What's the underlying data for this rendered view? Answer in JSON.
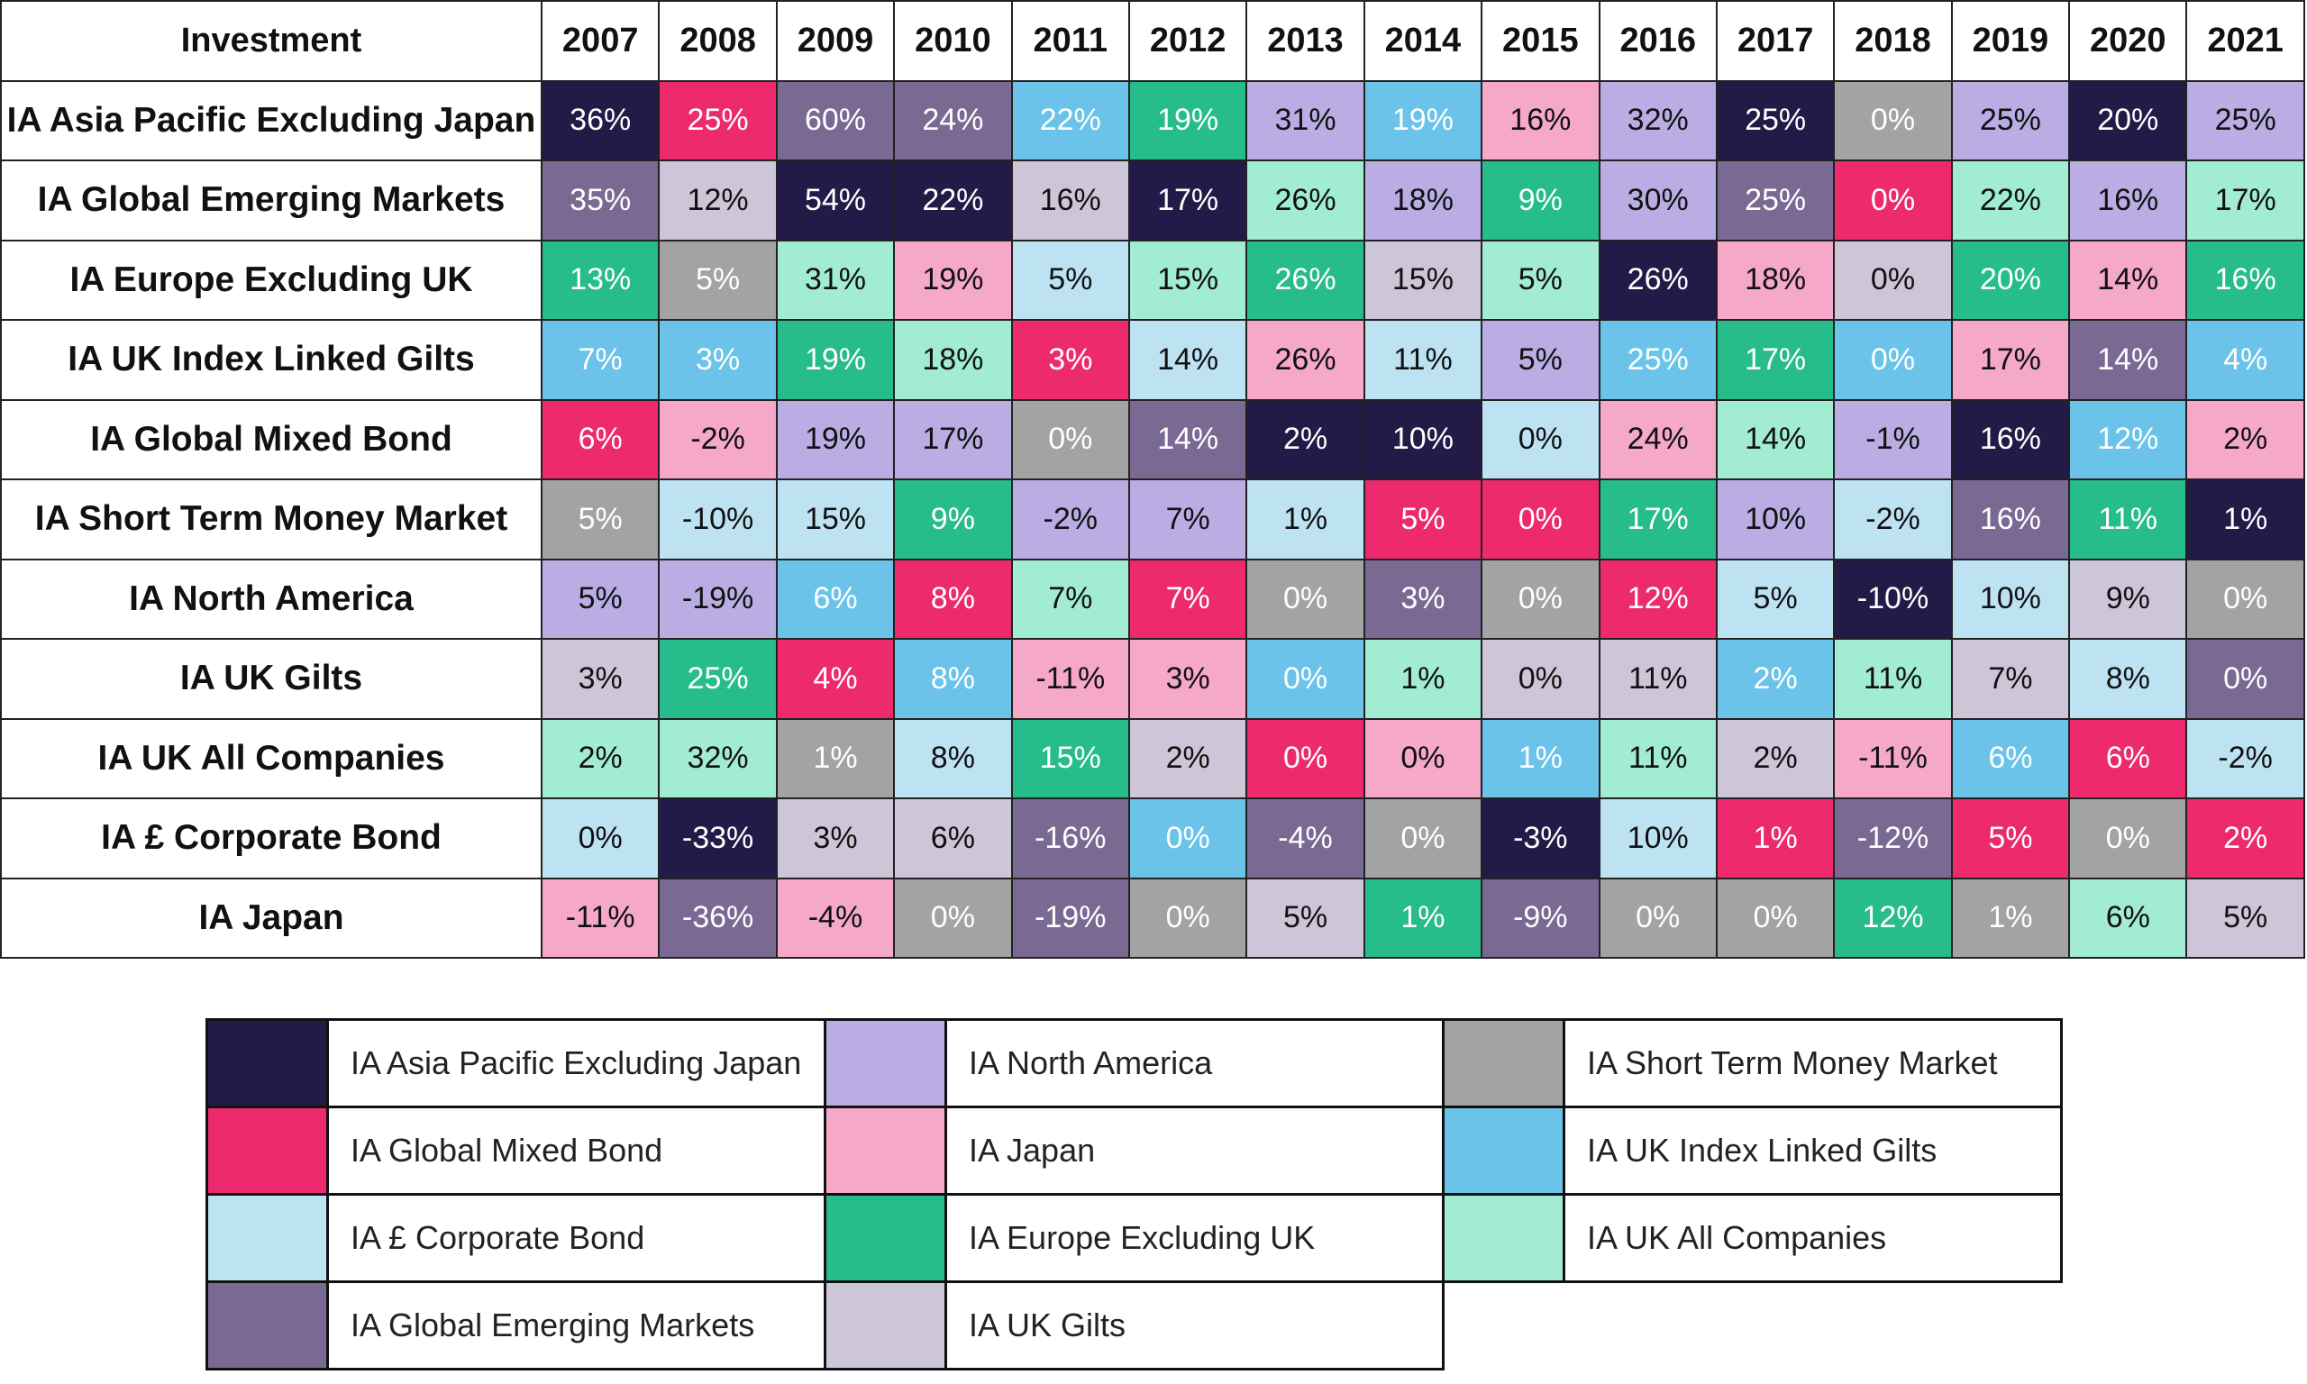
{
  "chart_data": {
    "type": "table",
    "header": "Investment",
    "years": [
      "2007",
      "2008",
      "2009",
      "2010",
      "2011",
      "2012",
      "2013",
      "2014",
      "2015",
      "2016",
      "2017",
      "2018",
      "2019",
      "2020",
      "2021"
    ],
    "rows": [
      {
        "name": "IA Asia Pacific Excluding Japan",
        "values": [
          "36%",
          "25%",
          "60%",
          "24%",
          "22%",
          "19%",
          "31%",
          "19%",
          "16%",
          "32%",
          "25%",
          "0%",
          "25%",
          "20%",
          "25%"
        ],
        "colors": [
          "AP",
          "GMB",
          "GEM",
          "GEM",
          "UKILG",
          "EU",
          "NA",
          "UKILG",
          "JP",
          "NA",
          "AP",
          "STMM",
          "NA",
          "AP",
          "NA"
        ]
      },
      {
        "name": "IA Global Emerging Markets",
        "values": [
          "35%",
          "12%",
          "54%",
          "22%",
          "16%",
          "17%",
          "26%",
          "18%",
          "9%",
          "30%",
          "25%",
          "0%",
          "22%",
          "16%",
          "17%"
        ],
        "colors": [
          "GEM",
          "UKG",
          "AP",
          "AP",
          "UKG",
          "AP",
          "UKAC",
          "NA",
          "EU",
          "NA",
          "GEM",
          "GMB",
          "UKAC",
          "NA",
          "UKAC"
        ]
      },
      {
        "name": "IA Europe Excluding UK",
        "values": [
          "13%",
          "5%",
          "31%",
          "19%",
          "5%",
          "15%",
          "26%",
          "15%",
          "5%",
          "26%",
          "18%",
          "0%",
          "20%",
          "14%",
          "16%"
        ],
        "colors": [
          "EU",
          "STMM",
          "UKAC",
          "JP",
          "CB",
          "UKAC",
          "EU",
          "UKG",
          "UKAC",
          "AP",
          "JP",
          "UKG",
          "EU",
          "JP",
          "EU"
        ]
      },
      {
        "name": "IA UK Index Linked Gilts",
        "values": [
          "7%",
          "3%",
          "19%",
          "18%",
          "3%",
          "14%",
          "26%",
          "11%",
          "5%",
          "25%",
          "17%",
          "0%",
          "17%",
          "14%",
          "4%"
        ],
        "colors": [
          "UKILG",
          "UKILG",
          "EU",
          "UKAC",
          "GMB",
          "CB",
          "JP",
          "CB",
          "NA",
          "UKILG",
          "EU",
          "UKILG",
          "JP",
          "GEM",
          "UKILG"
        ]
      },
      {
        "name": "IA Global Mixed Bond",
        "values": [
          "6%",
          "-2%",
          "19%",
          "17%",
          "0%",
          "14%",
          "2%",
          "10%",
          "0%",
          "24%",
          "14%",
          "-1%",
          "16%",
          "12%",
          "2%"
        ],
        "colors": [
          "GMB",
          "JP",
          "NA",
          "NA",
          "STMM",
          "GEM",
          "AP",
          "AP",
          "CB",
          "JP",
          "UKAC",
          "NA",
          "AP",
          "UKILG",
          "JP"
        ]
      },
      {
        "name": "IA Short Term Money Market",
        "values": [
          "5%",
          "-10%",
          "15%",
          "9%",
          "-2%",
          "7%",
          "1%",
          "5%",
          "0%",
          "17%",
          "10%",
          "-2%",
          "16%",
          "11%",
          "1%"
        ],
        "colors": [
          "STMM",
          "CB",
          "CB",
          "EU",
          "NA",
          "NA",
          "CB",
          "GMB",
          "GMB",
          "EU",
          "NA",
          "CB",
          "GEM",
          "EU",
          "AP"
        ]
      },
      {
        "name": "IA North America",
        "values": [
          "5%",
          "-19%",
          "6%",
          "8%",
          "7%",
          "7%",
          "0%",
          "3%",
          "0%",
          "12%",
          "5%",
          "-10%",
          "10%",
          "9%",
          "0%"
        ],
        "colors": [
          "NA",
          "NA",
          "UKILG",
          "GMB",
          "UKAC",
          "GMB",
          "STMM",
          "GEM",
          "STMM",
          "GMB",
          "CB",
          "AP",
          "CB",
          "UKG",
          "STMM"
        ]
      },
      {
        "name": "IA UK Gilts",
        "values": [
          "3%",
          "25%",
          "4%",
          "8%",
          "-11%",
          "3%",
          "0%",
          "1%",
          "0%",
          "11%",
          "2%",
          "11%",
          "7%",
          "8%",
          "0%"
        ],
        "colors": [
          "UKG",
          "EU",
          "GMB",
          "UKILG",
          "JP",
          "JP",
          "UKILG",
          "UKAC",
          "UKG",
          "UKG",
          "UKILG",
          "UKAC",
          "UKG",
          "CB",
          "GEM"
        ]
      },
      {
        "name": "IA UK All Companies",
        "values": [
          "2%",
          "32%",
          "1%",
          "8%",
          "15%",
          "2%",
          "0%",
          "0%",
          "1%",
          "11%",
          "2%",
          "-11%",
          "6%",
          "6%",
          "-2%"
        ],
        "colors": [
          "UKAC",
          "UKAC",
          "STMM",
          "CB",
          "EU",
          "UKG",
          "GMB",
          "JP",
          "UKILG",
          "UKAC",
          "UKG",
          "JP",
          "UKILG",
          "GMB",
          "CB"
        ]
      },
      {
        "name": "IA £ Corporate Bond",
        "values": [
          "0%",
          "-33%",
          "3%",
          "6%",
          "-16%",
          "0%",
          "-4%",
          "0%",
          "-3%",
          "10%",
          "1%",
          "-12%",
          "5%",
          "0%",
          "2%"
        ],
        "colors": [
          "CB",
          "AP",
          "UKG",
          "UKG",
          "GEM",
          "UKILG",
          "GEM",
          "STMM",
          "AP",
          "CB",
          "GMB",
          "GEM",
          "GMB",
          "STMM",
          "GMB"
        ]
      },
      {
        "name": "IA Japan",
        "values": [
          "-11%",
          "-36%",
          "-4%",
          "0%",
          "-19%",
          "0%",
          "5%",
          "1%",
          "-9%",
          "0%",
          "0%",
          "12%",
          "1%",
          "6%",
          "5%"
        ],
        "colors": [
          "JP",
          "GEM",
          "JP",
          "STMM",
          "GEM",
          "STMM",
          "UKG",
          "EU",
          "GEM",
          "STMM",
          "STMM",
          "EU",
          "STMM",
          "UKAC",
          "UKG"
        ]
      }
    ],
    "legend": [
      {
        "key": "AP",
        "label": "IA Asia Pacific Excluding Japan",
        "color": "#241a47"
      },
      {
        "key": "GMB",
        "label": "IA Global Mixed Bond",
        "color": "#ec2a6d"
      },
      {
        "key": "CB",
        "label": "IA £ Corporate Bond",
        "color": "#bde3f3"
      },
      {
        "key": "GEM",
        "label": "IA Global Emerging Markets",
        "color": "#7a6993"
      },
      {
        "key": "NA",
        "label": "IA North America",
        "color": "#b9ade4"
      },
      {
        "key": "JP",
        "label": "IA Japan",
        "color": "#f6a8c8"
      },
      {
        "key": "EU",
        "label": "IA Europe Excluding UK",
        "color": "#27bc8b"
      },
      {
        "key": "UKG",
        "label": "IA UK Gilts",
        "color": "#cdc6d8"
      },
      {
        "key": "STMM",
        "label": "IA Short Term Money Market",
        "color": "#a3a3a3"
      },
      {
        "key": "UKILG",
        "label": "IA UK Index Linked Gilts",
        "color": "#6bc3e9"
      },
      {
        "key": "UKAC",
        "label": "IA UK All Companies",
        "color": "#a2ecd3"
      }
    ],
    "light_text_keys": [
      "AP",
      "GMB",
      "GEM",
      "EU",
      "STMM",
      "UKILG"
    ]
  }
}
